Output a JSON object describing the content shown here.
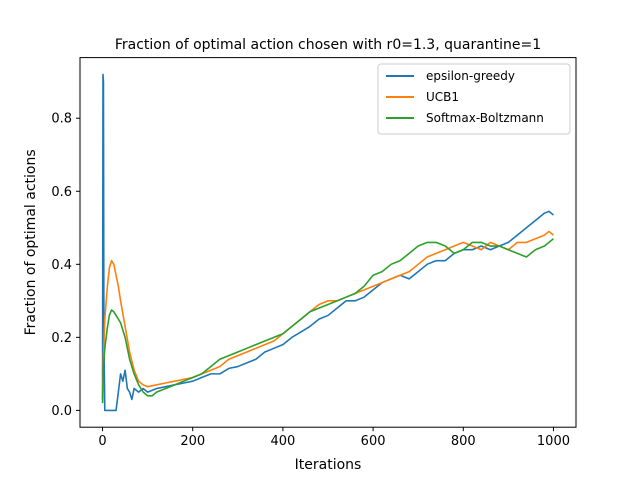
{
  "chart_data": {
    "type": "line",
    "title": "Fraction of optimal action chosen with r0=1.3, quarantine=1",
    "xlabel": "Iterations",
    "ylabel": "Fraction of optimal actions",
    "xlim": [
      -50,
      1050
    ],
    "ylim": [
      -0.046,
      0.966
    ],
    "xticks": [
      0,
      200,
      400,
      600,
      800,
      1000
    ],
    "yticks": [
      0.0,
      0.2,
      0.4,
      0.6,
      0.8
    ],
    "xtick_labels": [
      "0",
      "200",
      "400",
      "600",
      "800",
      "1000"
    ],
    "ytick_labels": [
      "0.0",
      "0.2",
      "0.4",
      "0.6",
      "0.8"
    ],
    "grid": false,
    "legend_position": "top-right",
    "series": [
      {
        "name": "epsilon-greedy",
        "color": "#1f77b4",
        "x": [
          0,
          1,
          2,
          3,
          5,
          10,
          20,
          30,
          35,
          40,
          45,
          50,
          55,
          60,
          65,
          70,
          80,
          90,
          100,
          120,
          140,
          160,
          180,
          200,
          220,
          240,
          260,
          280,
          300,
          320,
          340,
          360,
          380,
          400,
          420,
          440,
          460,
          480,
          500,
          520,
          540,
          560,
          580,
          600,
          620,
          640,
          660,
          680,
          700,
          720,
          740,
          760,
          780,
          800,
          820,
          840,
          860,
          880,
          900,
          920,
          940,
          960,
          980,
          990,
          1000
        ],
        "y": [
          0.03,
          0.92,
          0.9,
          0.2,
          0.0,
          0.0,
          0.0,
          0.0,
          0.05,
          0.1,
          0.08,
          0.11,
          0.06,
          0.05,
          0.03,
          0.06,
          0.05,
          0.06,
          0.05,
          0.06,
          0.065,
          0.07,
          0.075,
          0.08,
          0.09,
          0.1,
          0.1,
          0.115,
          0.12,
          0.13,
          0.14,
          0.16,
          0.17,
          0.18,
          0.2,
          0.215,
          0.23,
          0.25,
          0.26,
          0.28,
          0.3,
          0.3,
          0.31,
          0.33,
          0.35,
          0.36,
          0.37,
          0.36,
          0.38,
          0.4,
          0.41,
          0.41,
          0.43,
          0.44,
          0.44,
          0.45,
          0.44,
          0.45,
          0.46,
          0.48,
          0.5,
          0.52,
          0.54,
          0.545,
          0.535
        ]
      },
      {
        "name": "UCB1",
        "color": "#ff7f0e",
        "x": [
          0,
          2,
          5,
          10,
          15,
          20,
          25,
          30,
          35,
          40,
          50,
          60,
          70,
          80,
          90,
          100,
          120,
          140,
          160,
          180,
          200,
          220,
          240,
          260,
          280,
          300,
          320,
          340,
          360,
          380,
          400,
          420,
          440,
          460,
          480,
          500,
          520,
          540,
          560,
          580,
          600,
          620,
          640,
          660,
          680,
          700,
          720,
          740,
          760,
          780,
          800,
          820,
          840,
          860,
          880,
          900,
          920,
          940,
          960,
          980,
          990,
          1000
        ],
        "y": [
          0.03,
          0.15,
          0.25,
          0.33,
          0.39,
          0.41,
          0.4,
          0.37,
          0.34,
          0.3,
          0.23,
          0.16,
          0.11,
          0.08,
          0.07,
          0.065,
          0.07,
          0.075,
          0.08,
          0.085,
          0.09,
          0.1,
          0.11,
          0.12,
          0.14,
          0.15,
          0.16,
          0.17,
          0.18,
          0.19,
          0.21,
          0.23,
          0.25,
          0.27,
          0.29,
          0.3,
          0.3,
          0.31,
          0.32,
          0.33,
          0.34,
          0.35,
          0.36,
          0.37,
          0.38,
          0.4,
          0.42,
          0.43,
          0.44,
          0.45,
          0.46,
          0.45,
          0.44,
          0.46,
          0.45,
          0.44,
          0.46,
          0.46,
          0.47,
          0.48,
          0.49,
          0.48
        ]
      },
      {
        "name": "Softmax-Boltzmann",
        "color": "#2ca02c",
        "x": [
          0,
          2,
          5,
          10,
          15,
          20,
          25,
          30,
          40,
          50,
          60,
          70,
          80,
          90,
          100,
          110,
          120,
          140,
          160,
          180,
          200,
          220,
          240,
          260,
          280,
          300,
          320,
          340,
          360,
          380,
          400,
          420,
          440,
          460,
          480,
          500,
          520,
          540,
          560,
          580,
          600,
          620,
          640,
          660,
          680,
          700,
          720,
          740,
          760,
          780,
          800,
          820,
          840,
          860,
          880,
          900,
          920,
          940,
          960,
          980,
          990,
          1000
        ],
        "y": [
          0.02,
          0.12,
          0.17,
          0.22,
          0.26,
          0.275,
          0.27,
          0.26,
          0.24,
          0.2,
          0.14,
          0.1,
          0.07,
          0.05,
          0.04,
          0.04,
          0.05,
          0.06,
          0.07,
          0.08,
          0.09,
          0.1,
          0.12,
          0.14,
          0.15,
          0.16,
          0.17,
          0.18,
          0.19,
          0.2,
          0.21,
          0.23,
          0.25,
          0.27,
          0.28,
          0.29,
          0.3,
          0.31,
          0.32,
          0.34,
          0.37,
          0.38,
          0.4,
          0.41,
          0.43,
          0.45,
          0.46,
          0.46,
          0.45,
          0.43,
          0.44,
          0.46,
          0.46,
          0.45,
          0.45,
          0.44,
          0.43,
          0.42,
          0.44,
          0.45,
          0.46,
          0.47
        ]
      }
    ]
  }
}
